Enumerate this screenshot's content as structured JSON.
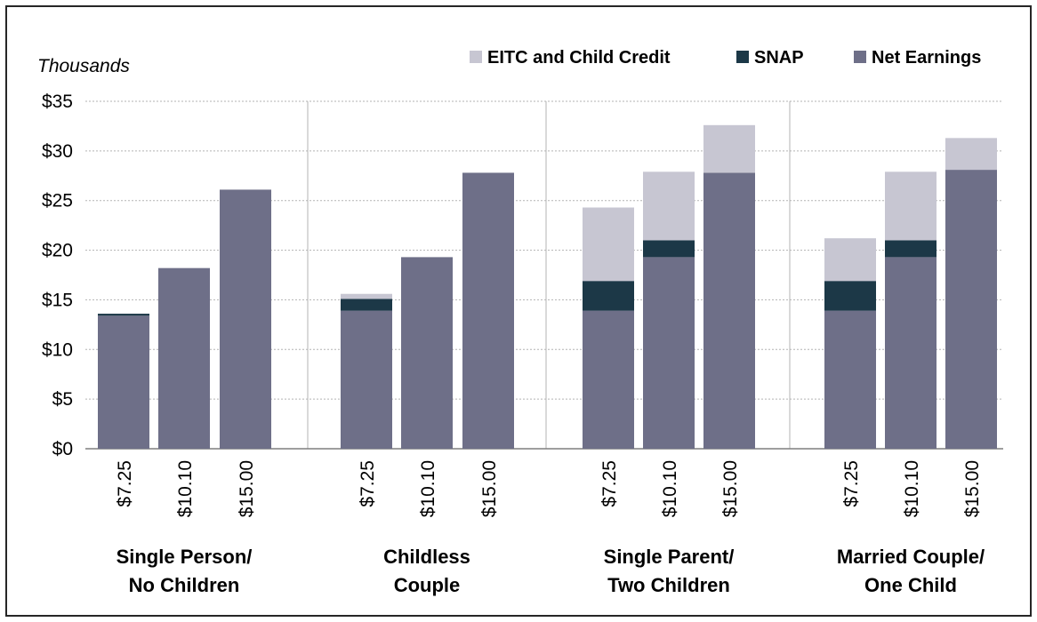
{
  "chart_data": {
    "type": "bar",
    "stacked": true,
    "units_label": "Thousands",
    "y_tick_labels": [
      "$0",
      "$5",
      "$10",
      "$15",
      "$20",
      "$25",
      "$30",
      "$35"
    ],
    "ylim": [
      0,
      35
    ],
    "grid": true,
    "legend_position": "top-right",
    "groups": [
      {
        "label_lines": [
          "Single Person/",
          "No Children"
        ],
        "categories": [
          "$7.25",
          "$10.10",
          "$15.00"
        ]
      },
      {
        "label_lines": [
          "Childless",
          "Couple"
        ],
        "categories": [
          "$7.25",
          "$10.10",
          "$15.00"
        ]
      },
      {
        "label_lines": [
          "Single Parent/",
          "Two Children"
        ],
        "categories": [
          "$7.25",
          "$10.10",
          "$15.00"
        ]
      },
      {
        "label_lines": [
          "Married Couple/",
          "One Child"
        ],
        "categories": [
          "$7.25",
          "$10.10",
          "$15.00"
        ]
      }
    ],
    "series": [
      {
        "name": "Net Earnings",
        "color": "#6e6f88",
        "values": [
          [
            13.4,
            18.2,
            26.1
          ],
          [
            13.9,
            19.3,
            27.8
          ],
          [
            13.9,
            19.3,
            27.8
          ],
          [
            13.9,
            19.3,
            28.1
          ]
        ]
      },
      {
        "name": "SNAP",
        "color": "#1c3847",
        "values": [
          [
            0.2,
            0,
            0
          ],
          [
            1.2,
            0,
            0
          ],
          [
            3.0,
            1.7,
            0
          ],
          [
            3.0,
            1.7,
            0
          ]
        ]
      },
      {
        "name": "EITC and Child Credit",
        "color": "#c7c6d2",
        "values": [
          [
            0,
            0,
            0
          ],
          [
            0.5,
            0,
            0
          ],
          [
            7.4,
            6.9,
            4.8
          ],
          [
            4.3,
            6.9,
            3.2
          ]
        ]
      }
    ],
    "legend_order": [
      "EITC and Child Credit",
      "SNAP",
      "Net Earnings"
    ]
  }
}
